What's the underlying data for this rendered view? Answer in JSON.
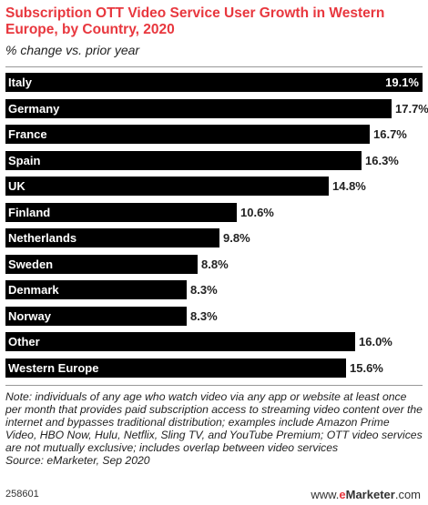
{
  "header": {
    "title": "Subscription OTT Video Service User Growth in Western Europe, by Country, 2020",
    "subtitle": "% change vs. prior year"
  },
  "chart_data": {
    "type": "bar",
    "orientation": "horizontal",
    "categories": [
      "Italy",
      "Germany",
      "France",
      "Spain",
      "UK",
      "Finland",
      "Netherlands",
      "Sweden",
      "Denmark",
      "Norway",
      "Other",
      "Western Europe"
    ],
    "values": [
      19.1,
      17.7,
      16.7,
      16.3,
      14.8,
      10.6,
      9.8,
      8.8,
      8.3,
      8.3,
      16.0,
      15.6
    ],
    "value_labels": [
      "19.1%",
      "17.7%",
      "16.7%",
      "16.3%",
      "14.8%",
      "10.6%",
      "9.8%",
      "8.8%",
      "8.3%",
      "8.3%",
      "16.0%",
      "15.6%"
    ],
    "bar_color": "#000000",
    "label_color": "#ffffff"
  },
  "note": "Note: individuals of any age who watch video via any app or website at least once per month that provides paid subscription access to streaming video content over the internet and bypasses traditional distribution; examples include Amazon Prime Video, HBO Now, Hulu, Netflix, Sling TV, and YouTube Premium; OTT video services are not mutually exclusive; includes overlap between video services",
  "source": "Source: eMarketer, Sep 2020",
  "footer": {
    "chart_id": "258601",
    "logo_prefix": "www.",
    "logo_brand_e": "e",
    "logo_brand_rest": "Marketer",
    "logo_suffix": ".com"
  },
  "colors": {
    "title": "#e8373e",
    "bar": "#000000"
  }
}
